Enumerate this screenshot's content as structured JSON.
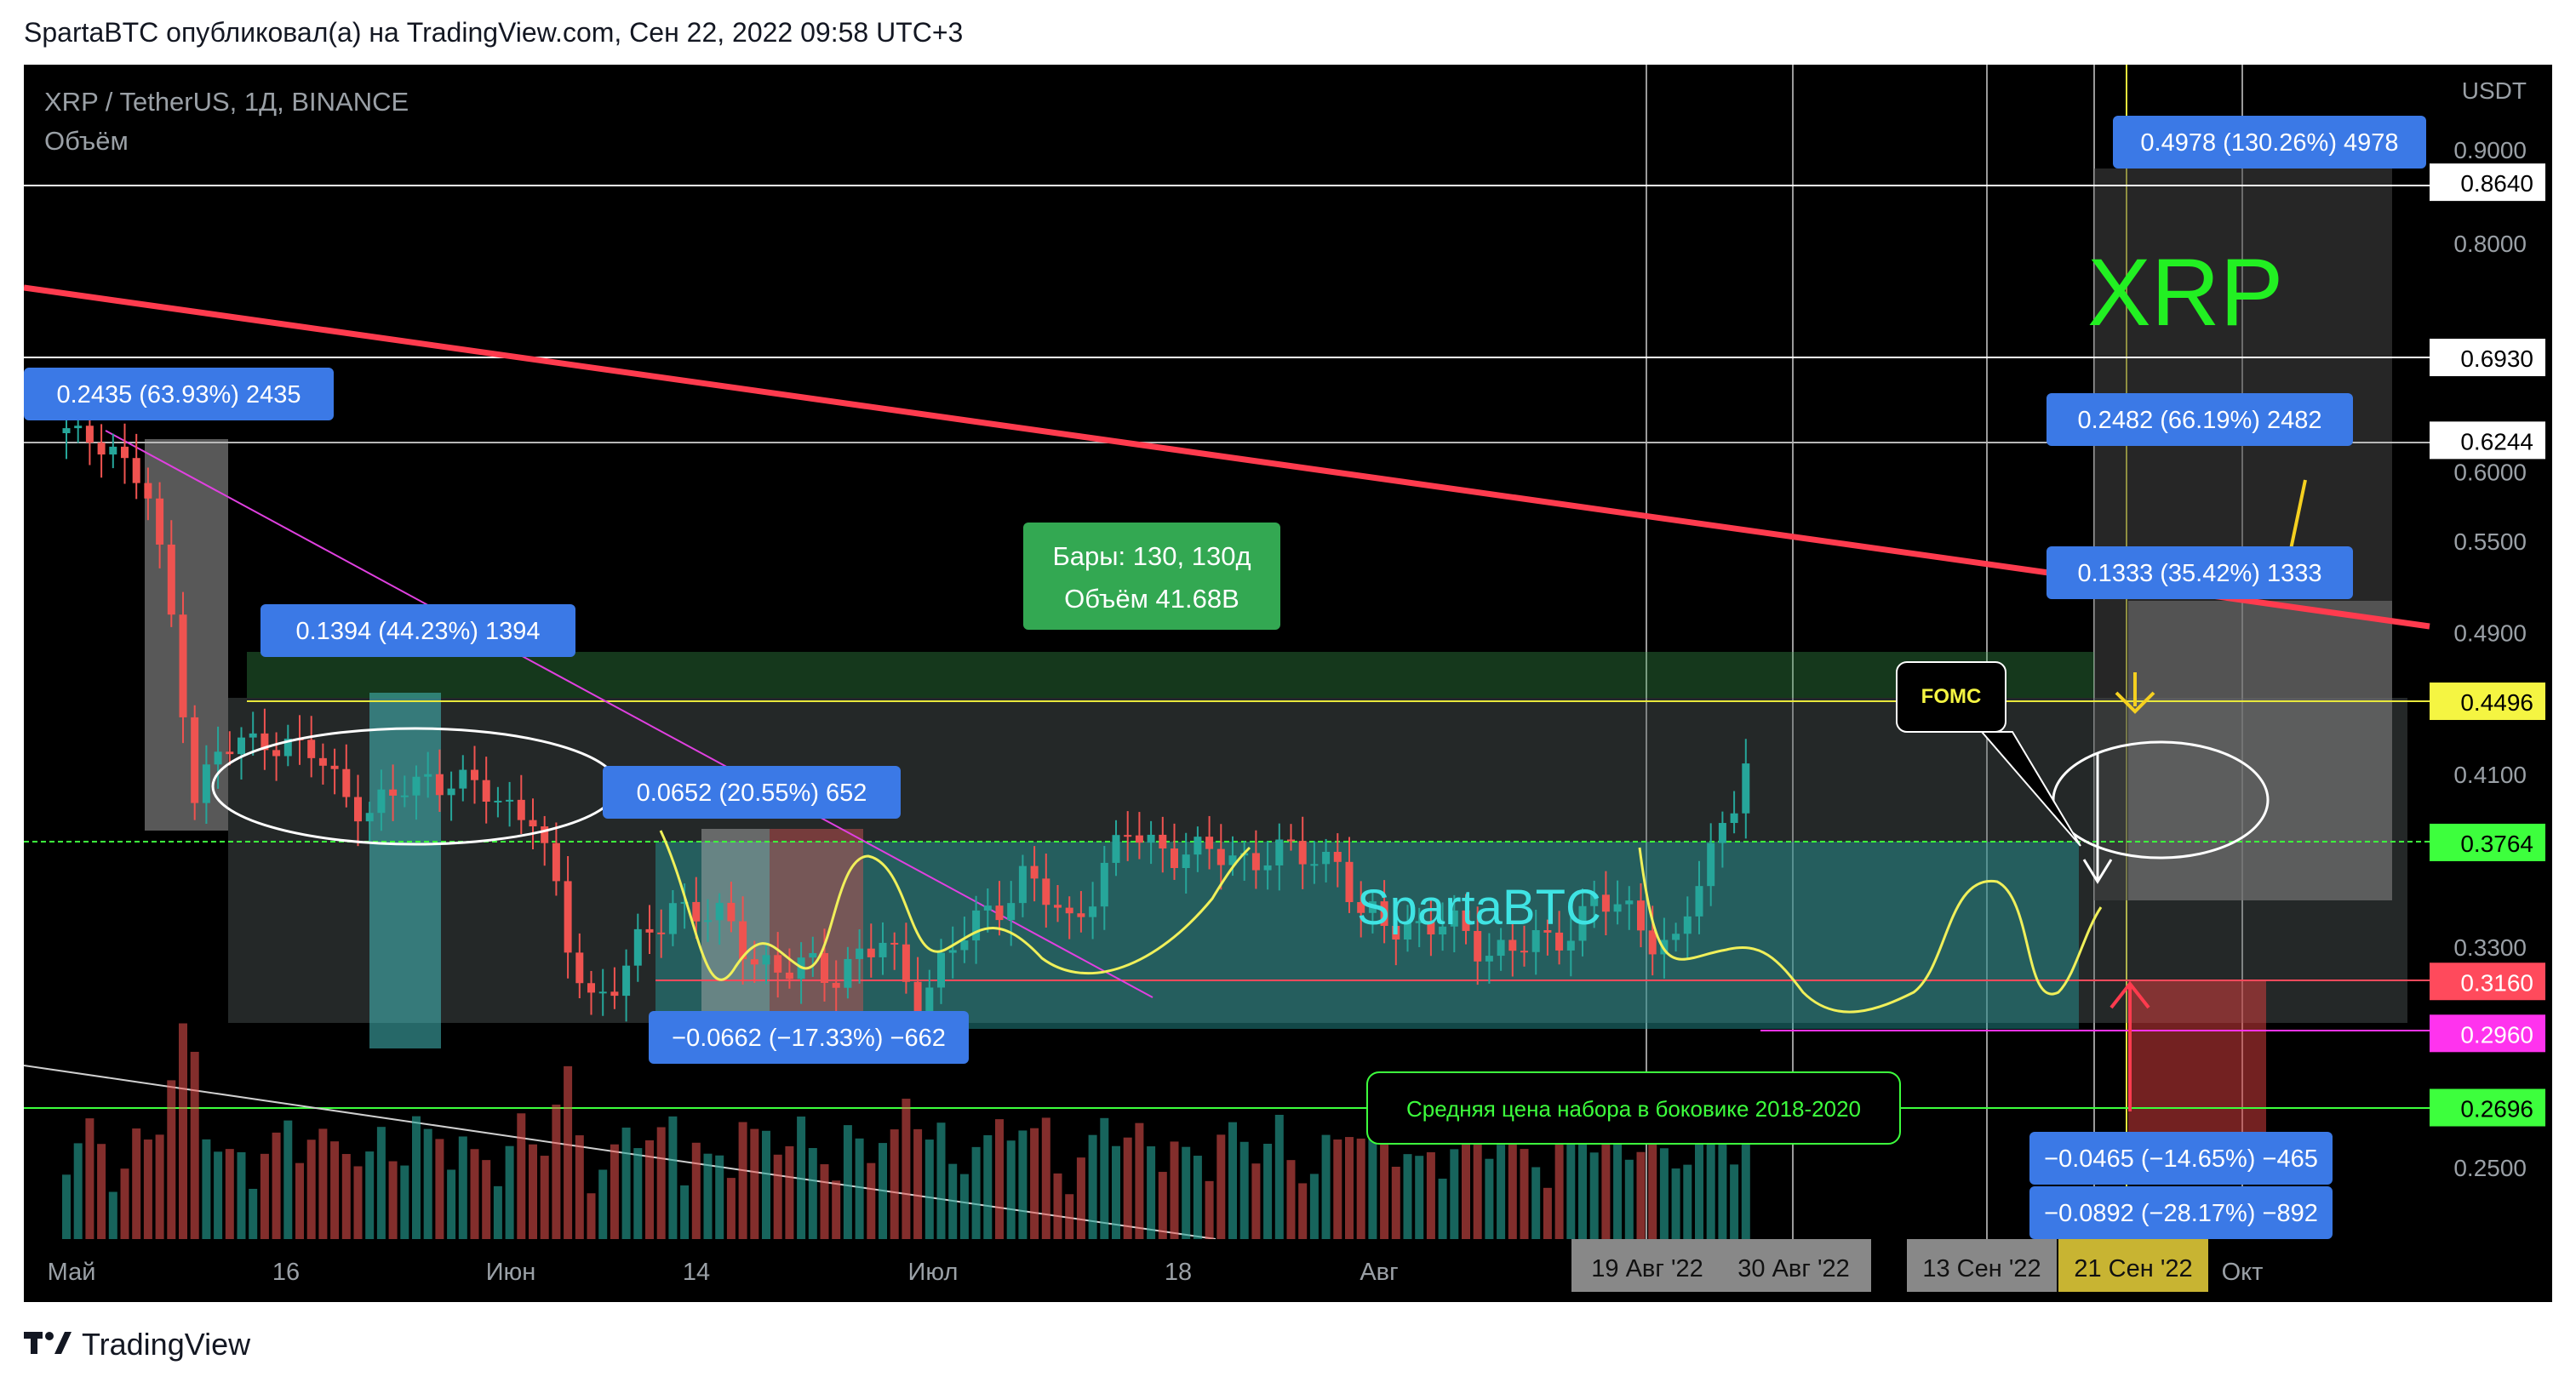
{
  "header": {
    "text": "SpartaBTC опубликовал(а) на TradingView.com, Сен 22, 2022 09:58 UTC+3"
  },
  "footer": {
    "brand": "TradingView"
  },
  "symbol": {
    "title": "XRP / TetherUS, 1Д, BINANCE",
    "volume_label": "Объём"
  },
  "colors": {
    "up": "#26a69a",
    "down": "#ef5350",
    "trendline": "#ff3b4e",
    "fib_yellow": "#e8e83c",
    "bg": "#000000"
  },
  "price_axis": {
    "currency": "USDT",
    "ticks": [
      "0.9000",
      "0.8000",
      "0.6000",
      "0.5500",
      "0.4900",
      "0.4100",
      "0.3300",
      "0.2500"
    ],
    "levels": [
      {
        "value": "0.8640",
        "color": "#ffffff",
        "text_color": "#000000"
      },
      {
        "value": "0.6930",
        "color": "#ffffff",
        "text_color": "#000000"
      },
      {
        "value": "0.6244",
        "color": "#ffffff",
        "text_color": "#000000"
      },
      {
        "value": "0.4496",
        "color": "#f5f542",
        "text_color": "#000000"
      },
      {
        "value": "0.3764",
        "color": "#3dff3d",
        "text_color": "#000000"
      },
      {
        "value": "0.3160",
        "color": "#ff4a5c",
        "text_color": "#ffffff"
      },
      {
        "value": "0.2960",
        "color": "#ff33ee",
        "text_color": "#ffffff"
      },
      {
        "value": "0.2696",
        "color": "#3dff3d",
        "text_color": "#000000"
      }
    ]
  },
  "time_axis": {
    "ticks": [
      "Май",
      "16",
      "Июн",
      "14",
      "Июл",
      "18",
      "Авг",
      "Окт"
    ],
    "highlights": [
      "19 Авг '22",
      "30 Авг '22",
      "13 Сен '22",
      "21 Сен '22"
    ]
  },
  "measurements": [
    "0.4978 (130.26%) 4978",
    "0.2435 (63.93%) 2435",
    "0.2482 (66.19%) 2482",
    "0.1333 (35.42%) 1333",
    "0.1394 (44.23%) 1394",
    "0.0652 (20.55%) 652",
    "−0.0662 (−17.33%) −662",
    "−0.0465 (−14.65%) −465",
    "−0.0892 (−28.17%) −892"
  ],
  "annotations": {
    "bars_line1": "Бары: 130, 130д",
    "bars_line2": "Объём 41.68B",
    "brand_text": "SpartaBTC",
    "ticker_text": "XRP",
    "fomc": "FOMC",
    "avg_price_note": "Средняя цена набора в боковике 2018-2020"
  },
  "chart_data": {
    "type": "candlestick",
    "symbol": "XRP/USDT",
    "interval": "1D",
    "ylim": [
      0.25,
      0.9
    ],
    "x_range": [
      "2022-05-01",
      "2022-10-10"
    ],
    "close_price_path": [
      [
        "2022-05-01",
        0.63
      ],
      [
        "2022-05-05",
        0.62
      ],
      [
        "2022-05-08",
        0.58
      ],
      [
        "2022-05-10",
        0.5
      ],
      [
        "2022-05-12",
        0.4
      ],
      [
        "2022-05-14",
        0.42
      ],
      [
        "2022-05-18",
        0.43
      ],
      [
        "2022-05-22",
        0.42
      ],
      [
        "2022-05-27",
        0.39
      ],
      [
        "2022-06-01",
        0.41
      ],
      [
        "2022-06-06",
        0.4
      ],
      [
        "2022-06-10",
        0.39
      ],
      [
        "2022-06-13",
        0.33
      ],
      [
        "2022-06-15",
        0.31
      ],
      [
        "2022-06-18",
        0.32
      ],
      [
        "2022-06-22",
        0.35
      ],
      [
        "2022-06-26",
        0.34
      ],
      [
        "2022-07-01",
        0.32
      ],
      [
        "2022-07-05",
        0.32
      ],
      [
        "2022-07-10",
        0.33
      ],
      [
        "2022-07-13",
        0.31
      ],
      [
        "2022-07-18",
        0.34
      ],
      [
        "2022-07-22",
        0.36
      ],
      [
        "2022-07-26",
        0.34
      ],
      [
        "2022-07-31",
        0.38
      ],
      [
        "2022-08-06",
        0.37
      ],
      [
        "2022-08-13",
        0.37
      ],
      [
        "2022-08-18",
        0.37
      ],
      [
        "2022-08-20",
        0.34
      ],
      [
        "2022-08-26",
        0.34
      ],
      [
        "2022-08-31",
        0.33
      ],
      [
        "2022-09-05",
        0.33
      ],
      [
        "2022-09-09",
        0.35
      ],
      [
        "2022-09-13",
        0.34
      ],
      [
        "2022-09-16",
        0.33
      ],
      [
        "2022-09-19",
        0.37
      ],
      [
        "2022-09-21",
        0.4
      ],
      [
        "2022-09-22",
        0.42
      ]
    ]
  }
}
